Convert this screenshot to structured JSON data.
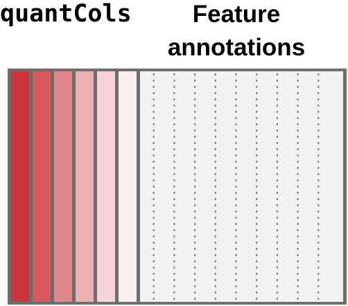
{
  "labels": {
    "quant_cols": "quantCols",
    "feature_annotations": "Feature annotations"
  },
  "quant_columns": {
    "count": 6,
    "colors": [
      "#c8363b",
      "#d75a5d",
      "#e0878a",
      "#ebb0b1",
      "#f5d5d6",
      "#fbeeee"
    ],
    "border_color": "#6e6e6e"
  },
  "annotation_columns": {
    "count": 10,
    "background_color": "#f2f2f2",
    "divider_color": "#7a7a7a"
  },
  "outline_color": "#6e6e6e"
}
